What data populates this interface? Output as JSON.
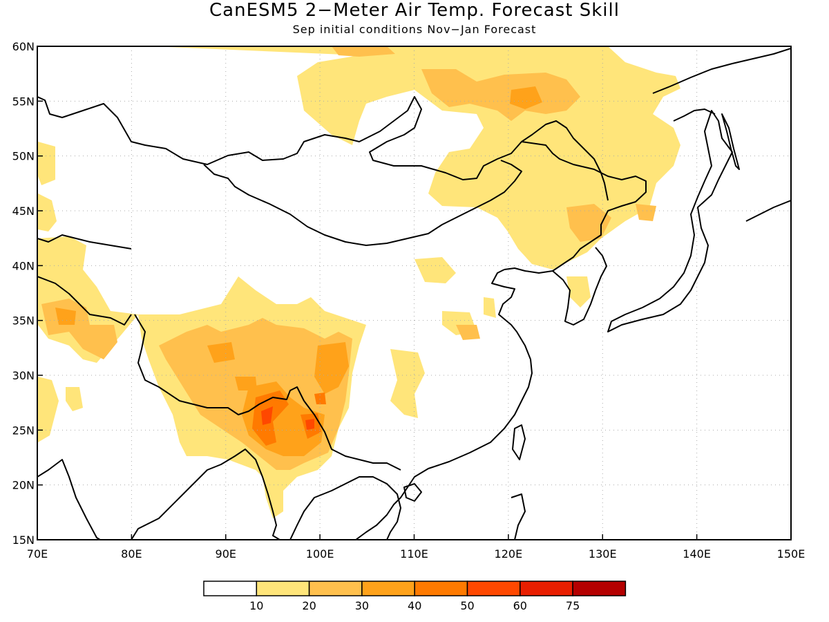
{
  "title": "CanESM5 2−Meter Air Temp. Forecast Skill",
  "subtitle": "Sep initial conditions  Nov−Jan Forecast",
  "map": {
    "lon_range": [
      70,
      150
    ],
    "lat_range": [
      15,
      60
    ],
    "lon_ticks": [
      {
        "value": 70,
        "label": "70E"
      },
      {
        "value": 80,
        "label": "80E"
      },
      {
        "value": 90,
        "label": "90E"
      },
      {
        "value": 100,
        "label": "100E"
      },
      {
        "value": 110,
        "label": "110E"
      },
      {
        "value": 120,
        "label": "120E"
      },
      {
        "value": 130,
        "label": "130E"
      },
      {
        "value": 140,
        "label": "140E"
      },
      {
        "value": 150,
        "label": "150E"
      }
    ],
    "lat_ticks": [
      {
        "value": 15,
        "label": "15N"
      },
      {
        "value": 20,
        "label": "20N"
      },
      {
        "value": 25,
        "label": "25N"
      },
      {
        "value": 30,
        "label": "30N"
      },
      {
        "value": 35,
        "label": "35N"
      },
      {
        "value": 40,
        "label": "40N"
      },
      {
        "value": 45,
        "label": "45N"
      },
      {
        "value": 50,
        "label": "50N"
      },
      {
        "value": 55,
        "label": "55N"
      },
      {
        "value": 60,
        "label": "60N"
      }
    ],
    "gridlines": true
  },
  "colorbar": {
    "colors": [
      "#ffffff",
      "#ffe57a",
      "#ffc04d",
      "#ffa21a",
      "#ff7a00",
      "#ff4800",
      "#e81e00",
      "#b40000"
    ],
    "labels": [
      "10",
      "20",
      "30",
      "40",
      "50",
      "60",
      "75"
    ]
  }
}
